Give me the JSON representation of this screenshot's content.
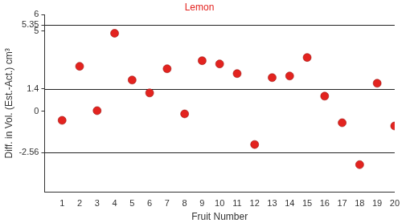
{
  "chart_data": {
    "type": "scatter",
    "title": "Lemon",
    "x_label": "Fruit Number",
    "y_label": "Diff. in Vol. (Est.-Act.) cm³",
    "x": [
      1,
      2,
      3,
      4,
      5,
      6,
      7,
      8,
      9,
      10,
      11,
      12,
      13,
      14,
      15,
      16,
      17,
      18,
      19,
      20
    ],
    "values": [
      -0.55,
      2.8,
      0.05,
      4.85,
      1.95,
      1.15,
      2.65,
      -0.15,
      3.15,
      2.95,
      2.35,
      -2.05,
      2.1,
      2.2,
      3.35,
      0.95,
      -0.7,
      -3.3,
      1.75,
      -0.9
    ],
    "color": "#e3231f",
    "marker": "circle",
    "hlines": [
      5.35,
      1.4,
      -2.56
    ],
    "xlim": [
      0,
      20
    ],
    "xticks": [
      1,
      2,
      3,
      4,
      5,
      6,
      7,
      8,
      9,
      10,
      11,
      12,
      13,
      14,
      15,
      16,
      17,
      18,
      19,
      20
    ],
    "ylim": [
      -5,
      6
    ],
    "yticks": [
      -2.56,
      0,
      1.4,
      5,
      5.35,
      6
    ],
    "grid": false
  }
}
